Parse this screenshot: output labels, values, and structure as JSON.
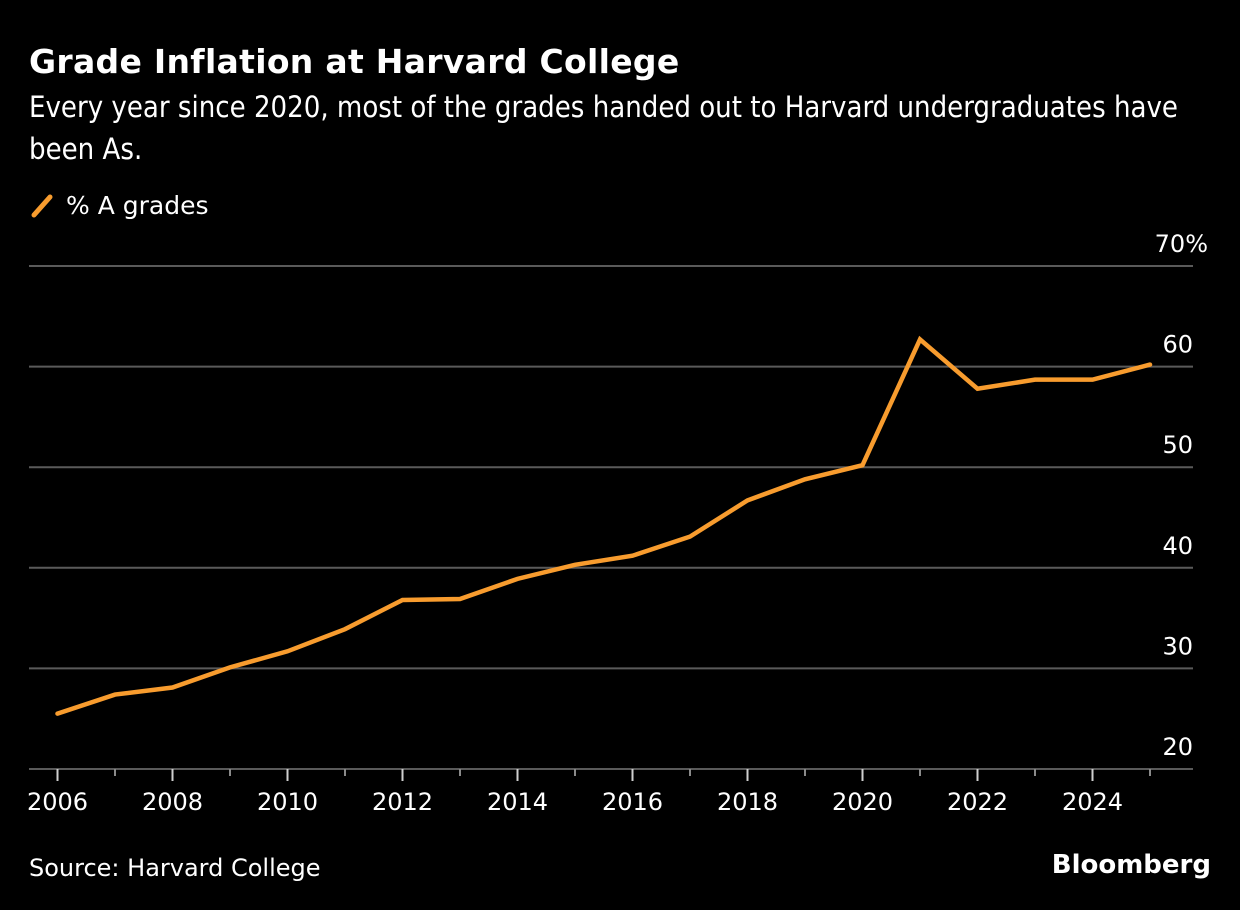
{
  "header": {
    "title": "Grade Inflation at Harvard College",
    "subtitle": "Every year since 2020, most of the grades handed out to Harvard undergraduates have been As."
  },
  "legend": {
    "label": "% A grades",
    "color": "#f89c2e"
  },
  "footer": {
    "source": "Source: Harvard College",
    "brand": "Bloomberg"
  },
  "colors": {
    "background": "#000000",
    "line": "#f89c2e",
    "grid": "#5a5a5a",
    "text": "#ffffff"
  },
  "chart_data": {
    "type": "line",
    "title": "Grade Inflation at Harvard College",
    "subtitle": "Every year since 2020, most of the grades handed out to Harvard undergraduates have been As.",
    "xlabel": "",
    "ylabel": "",
    "x": [
      2006,
      2007,
      2008,
      2009,
      2010,
      2011,
      2012,
      2013,
      2014,
      2015,
      2016,
      2017,
      2018,
      2019,
      2020,
      2021,
      2022,
      2023,
      2024,
      2025
    ],
    "series": [
      {
        "name": "% A grades",
        "values": [
          25.5,
          27.4,
          28.1,
          30.1,
          31.7,
          33.9,
          36.8,
          36.9,
          38.9,
          40.3,
          41.2,
          43.1,
          46.7,
          48.8,
          50.2,
          62.7,
          57.8,
          58.7,
          58.7,
          60.2
        ]
      }
    ],
    "xlim": [
      2005.5,
      2026.2
    ],
    "ylim": [
      20,
      70
    ],
    "x_ticks_major": [
      2006,
      2008,
      2010,
      2012,
      2014,
      2016,
      2018,
      2020,
      2022,
      2024
    ],
    "x_ticks_minor": [
      2007,
      2009,
      2011,
      2013,
      2015,
      2017,
      2019,
      2021,
      2023,
      2025
    ],
    "y_ticks": [
      20,
      30,
      40,
      50,
      60,
      70
    ],
    "y_tick_labels": [
      "20",
      "30",
      "40",
      "50",
      "60",
      "70%"
    ],
    "grid": true,
    "legend_position": "top-left",
    "y_axis_position": "right"
  }
}
